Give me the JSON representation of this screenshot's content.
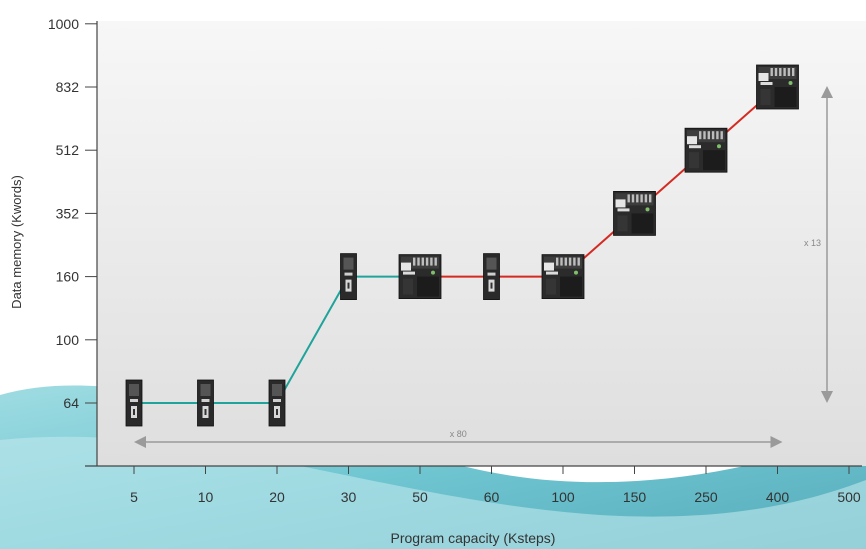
{
  "chart_data": {
    "type": "line",
    "title": "",
    "xlabel": "Program capacity (Ksteps)",
    "ylabel": "Data memory (Kwords)",
    "x_ticks": [
      "5",
      "10",
      "20",
      "30",
      "50",
      "60",
      "100",
      "150",
      "250",
      "400",
      "500"
    ],
    "y_ticks": [
      "64",
      "100",
      "160",
      "352",
      "512",
      "832",
      "1000"
    ],
    "axis_scale": "categorical (evenly spaced tick labels on both axes)",
    "grid": false,
    "series": [
      {
        "color": "#1fa39a",
        "points": [
          {
            "x": "5",
            "y": "64"
          },
          {
            "x": "10",
            "y": "64"
          },
          {
            "x": "20",
            "y": "64"
          },
          {
            "x": "30",
            "y": "160"
          },
          {
            "x": "50",
            "y": "160"
          }
        ]
      },
      {
        "color": "#d42a22",
        "points": [
          {
            "x": "50",
            "y": "160"
          },
          {
            "x": "60",
            "y": "160"
          },
          {
            "x": "100",
            "y": "160"
          },
          {
            "x": "150",
            "y": "352"
          },
          {
            "x": "250",
            "y": "512"
          },
          {
            "x": "400",
            "y": "832"
          }
        ]
      }
    ],
    "device_markers": [
      {
        "x": "5",
        "y": "64",
        "kind": "slim-cpu-unit"
      },
      {
        "x": "10",
        "y": "64",
        "kind": "slim-cpu-unit"
      },
      {
        "x": "20",
        "y": "64",
        "kind": "slim-cpu-unit"
      },
      {
        "x": "30",
        "y": "160",
        "kind": "slim-cpu-unit"
      },
      {
        "x": "50",
        "y": "160",
        "kind": "wide-cpu-unit"
      },
      {
        "x": "60",
        "y": "160",
        "kind": "slim-cpu-unit"
      },
      {
        "x": "100",
        "y": "160",
        "kind": "wide-cpu-unit"
      },
      {
        "x": "150",
        "y": "352",
        "kind": "wide-cpu-unit"
      },
      {
        "x": "250",
        "y": "512",
        "kind": "wide-cpu-unit"
      },
      {
        "x": "400",
        "y": "832",
        "kind": "wide-cpu-unit"
      }
    ],
    "annotations": {
      "horizontal_range_label": "x 80",
      "vertical_range_label": "x 13"
    },
    "colors": {
      "plot_background": "#f2f2f2",
      "axis": "#444444",
      "range_arrow": "#9a9a9a",
      "accent_teal": "#1fa39a",
      "accent_red": "#d42a22"
    }
  }
}
